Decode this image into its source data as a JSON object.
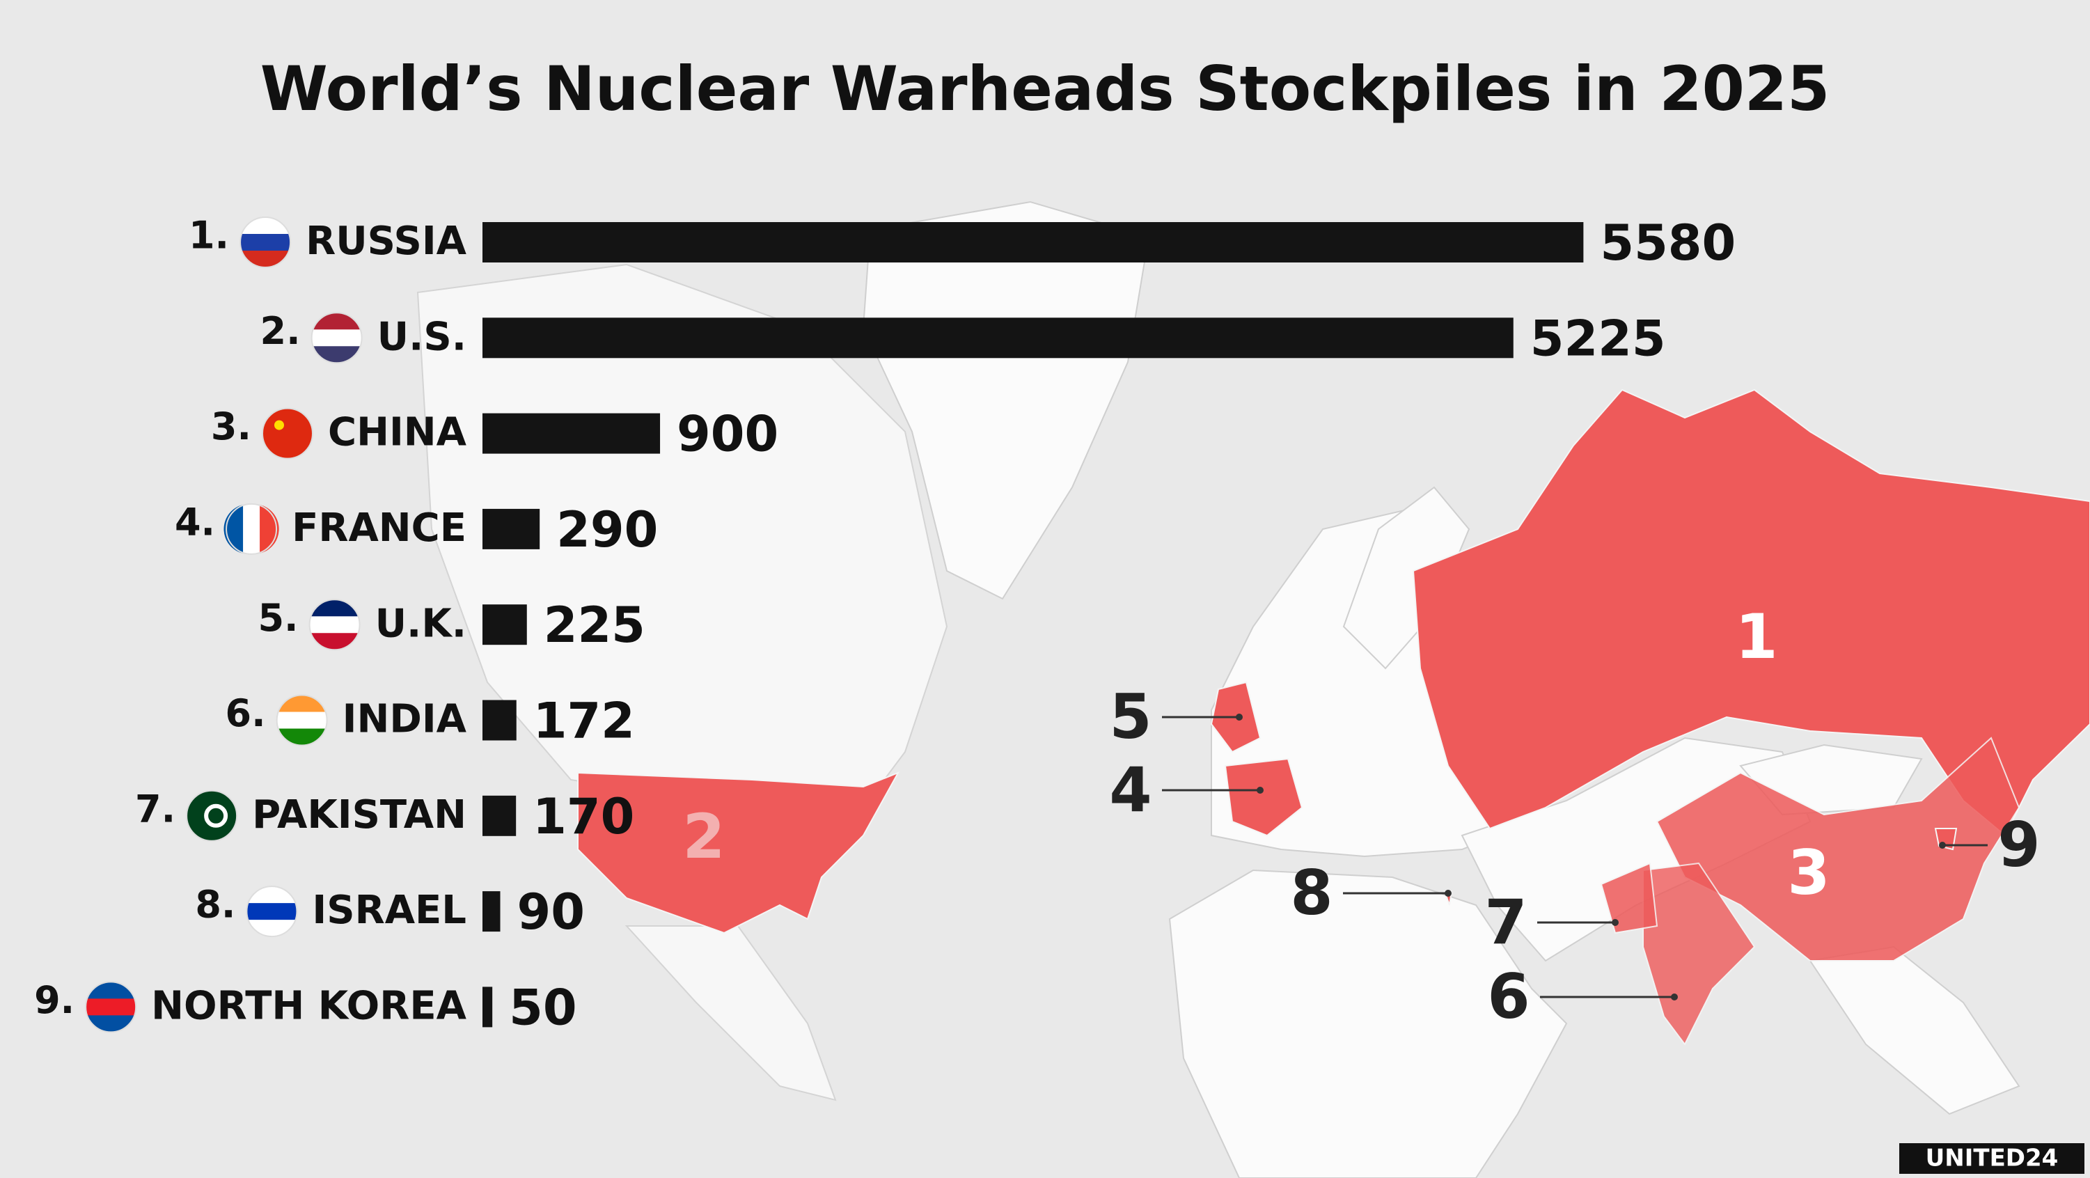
{
  "chart_data": {
    "type": "bar",
    "orientation": "horizontal",
    "title": "World’s Nuclear Warheads Stockpiles in 2025",
    "ranks": [
      "1.",
      "2.",
      "3.",
      "4.",
      "5.",
      "6.",
      "7.",
      "8.",
      "9."
    ],
    "categories": [
      "RUSSIA",
      "U.S.",
      "CHINA",
      "FRANCE",
      "U.K.",
      "INDIA",
      "PAKISTAN",
      "ISRAEL",
      "NORTH KOREA"
    ],
    "values": [
      5580,
      5225,
      900,
      290,
      225,
      172,
      170,
      90,
      50
    ],
    "color": "#141414",
    "map_labels": [
      "1",
      "2",
      "3",
      "4",
      "5",
      "6",
      "7",
      "8",
      "9"
    ],
    "map_color": "#ee5a5a",
    "logo": "UNITED24"
  }
}
